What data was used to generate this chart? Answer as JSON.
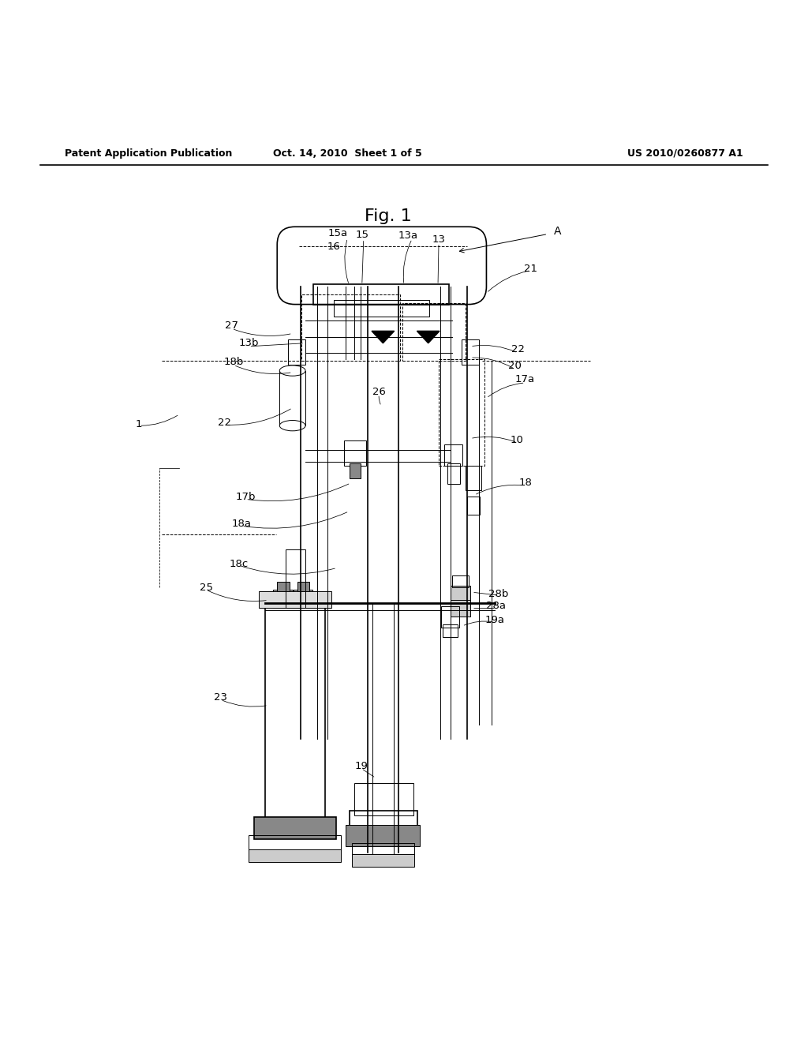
{
  "header_left": "Patent Application Publication",
  "header_mid": "Oct. 14, 2010  Sheet 1 of 5",
  "header_right": "US 2010/0260877 A1",
  "fig_label": "Fig. 1",
  "background_color": "#ffffff",
  "line_color": "#000000"
}
